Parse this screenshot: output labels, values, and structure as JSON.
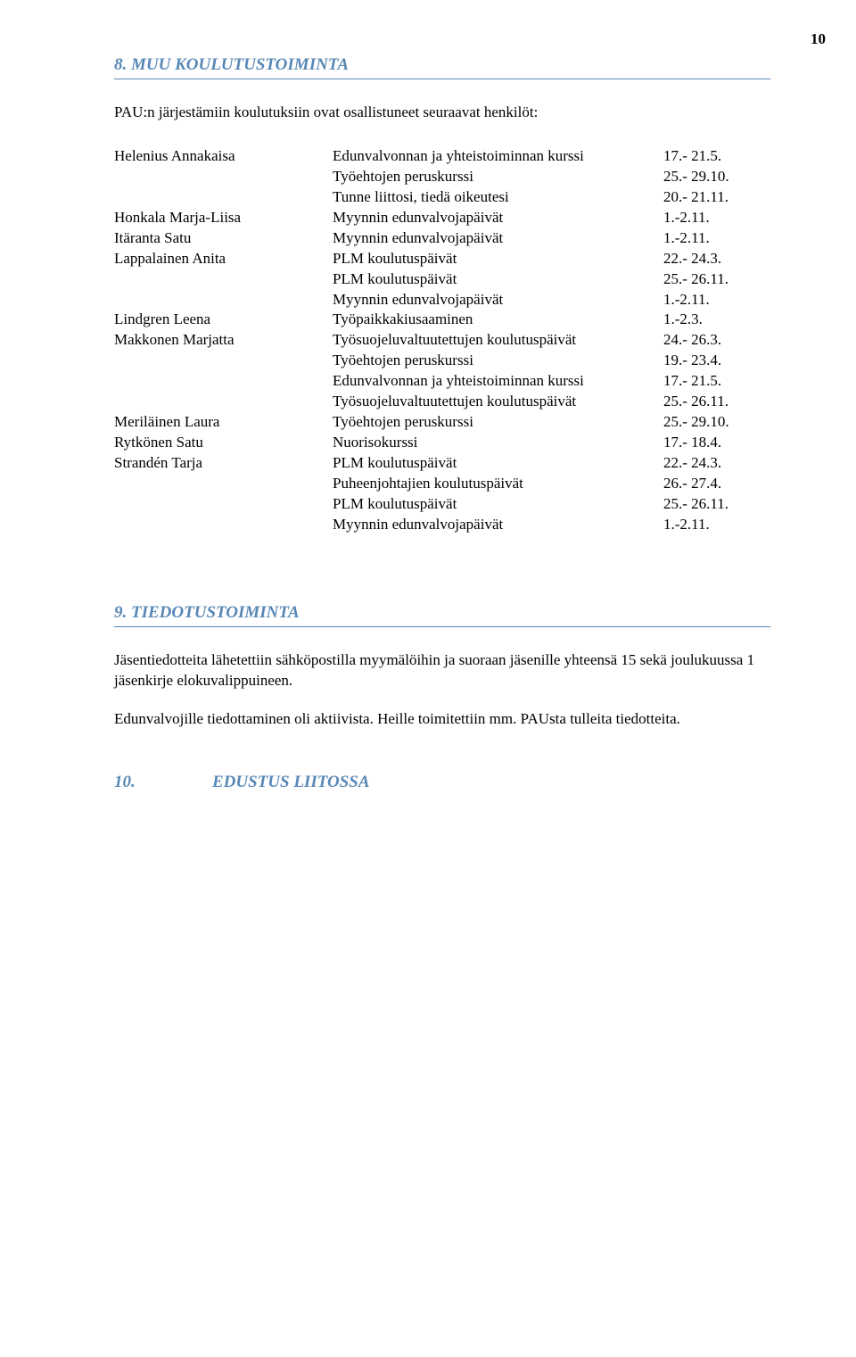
{
  "page_number": "10",
  "colors": {
    "heading": "#5888b6",
    "rule": "#5888b6",
    "text": "#000000",
    "background": "#ffffff"
  },
  "fonts": {
    "body_family": "Georgia, serif",
    "body_size_pt": 12,
    "heading_size_pt": 13,
    "heading_weight": "bold",
    "heading_style": "italic"
  },
  "section8": {
    "title": "8. MUU KOULUTUSTOIMINTA",
    "intro": "PAU:n järjestämiin koulutuksiin ovat osallistuneet seuraavat henkilöt:",
    "rows": [
      {
        "name": "Helenius Annakaisa",
        "event": "Edunvalvonnan ja yhteistoiminnan kurssi",
        "date": "17.- 21.5."
      },
      {
        "name": "",
        "event": "Työehtojen peruskurssi",
        "date": "25.- 29.10."
      },
      {
        "name": "",
        "event": "Tunne liittosi, tiedä oikeutesi",
        "date": "20.- 21.11."
      },
      {
        "name": "Honkala Marja-Liisa",
        "event": "Myynnin edunvalvojapäivät",
        "date": "1.-2.11."
      },
      {
        "name": "Itäranta Satu",
        "event": "Myynnin edunvalvojapäivät",
        "date": "1.-2.11."
      },
      {
        "name": "Lappalainen Anita",
        "event": "PLM koulutuspäivät",
        "date": "22.- 24.3."
      },
      {
        "name": "",
        "event": "PLM koulutuspäivät",
        "date": "25.- 26.11."
      },
      {
        "name": "",
        "event": "Myynnin edunvalvojapäivät",
        "date": "1.-2.11."
      },
      {
        "name": "Lindgren Leena",
        "event": "Työpaikkakiusaaminen",
        "date": "1.-2.3."
      },
      {
        "name": "Makkonen Marjatta",
        "event": "Työsuojeluvaltuutettujen koulutuspäivät",
        "date": "24.- 26.3."
      },
      {
        "name": "",
        "event": "Työehtojen peruskurssi",
        "date": "19.- 23.4."
      },
      {
        "name": "",
        "event": "Edunvalvonnan ja yhteistoiminnan kurssi",
        "date": "17.- 21.5."
      },
      {
        "name": "",
        "event": "Työsuojeluvaltuutettujen koulutuspäivät",
        "date": "25.- 26.11."
      },
      {
        "name": "Meriläinen Laura",
        "event": "Työehtojen peruskurssi",
        "date": "25.- 29.10."
      },
      {
        "name": "Rytkönen Satu",
        "event": "Nuorisokurssi",
        "date": "17.- 18.4."
      },
      {
        "name": "Strandén Tarja",
        "event": "PLM koulutuspäivät",
        "date": "22.- 24.3."
      },
      {
        "name": "",
        "event": "Puheenjohtajien koulutuspäivät",
        "date": "26.- 27.4."
      },
      {
        "name": "",
        "event": "PLM koulutuspäivät",
        "date": "25.- 26.11."
      },
      {
        "name": "",
        "event": "Myynnin edunvalvojapäivät",
        "date": "1.-2.11."
      }
    ]
  },
  "section9": {
    "title": "9. TIEDOTUSTOIMINTA",
    "para1": "Jäsentiedotteita lähetettiin sähköpostilla myymälöihin ja suoraan jäsenille yhteensä 15 sekä joulukuussa 1 jäsenkirje elokuvalippuineen.",
    "para2": "Edunvalvojille tiedottaminen oli aktiivista. Heille toimitettiin mm. PAUsta tulleita tiedotteita."
  },
  "section10": {
    "number": "10.",
    "title": "EDUSTUS LIITOSSA"
  }
}
